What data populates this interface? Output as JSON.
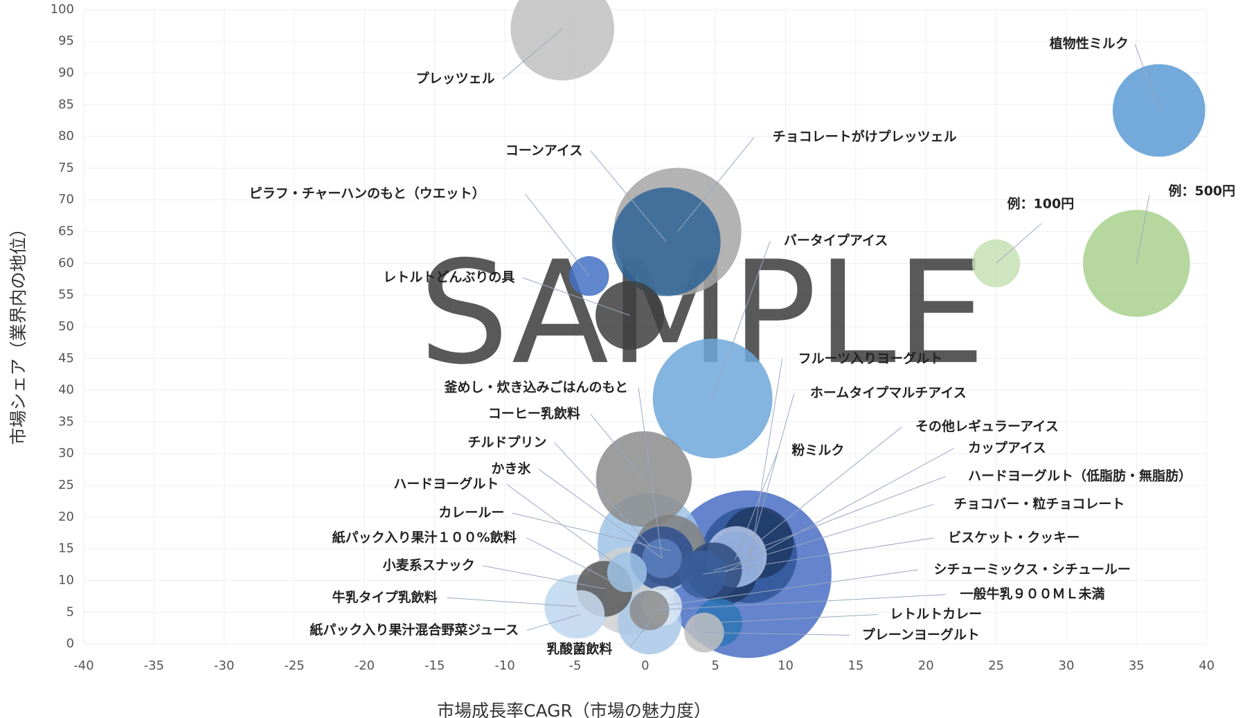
{
  "chart_data": {
    "type": "bubble",
    "x_label": "市場成長率CAGR（市場の魅力度）",
    "y_label": "市場シェア（業界内の地位）",
    "watermark": "SAMPLE",
    "xlim": [
      -40,
      40
    ],
    "xticks": [
      -40,
      -35,
      -30,
      -25,
      -20,
      -15,
      -10,
      -5,
      0,
      5,
      10,
      15,
      20,
      25,
      30,
      35,
      40
    ],
    "ylim": [
      0,
      100
    ],
    "yticks": [
      0,
      5,
      10,
      15,
      20,
      25,
      30,
      35,
      40,
      45,
      50,
      55,
      60,
      65,
      70,
      75,
      80,
      85,
      90,
      95,
      100
    ],
    "grid": true,
    "points": [
      {
        "name": "プレッツェル",
        "x": -5.9,
        "y": 97,
        "size": 469,
        "color": "#bfbfbf"
      },
      {
        "name": "植物性ミルク",
        "x": 36.6,
        "y": 84.1,
        "size": 374,
        "color": "#5b9bd5"
      },
      {
        "name": "チョコレートがけプレッツェル",
        "x": 2.3,
        "y": 65,
        "size": 711,
        "color": "#a6a6a6"
      },
      {
        "name": "コーンアイス",
        "x": 1.5,
        "y": 63.4,
        "size": 514,
        "color": "#2f6496"
      },
      {
        "name": "ピラフ・チャーハンのもと（ウエット）",
        "x": -4.0,
        "y": 58,
        "size": 69,
        "color": "#4472c4"
      },
      {
        "name": "レトルトどんぶりの具",
        "x": -1.1,
        "y": 51.8,
        "size": 205,
        "color": "#404040"
      },
      {
        "name": "バータイプアイス",
        "x": 4.8,
        "y": 38.7,
        "size": 625,
        "color": "#6fa8dc"
      },
      {
        "name": "例：100円",
        "x": 25,
        "y": 60,
        "size": 100,
        "color": "#c5e0b4"
      },
      {
        "name": "例：500円",
        "x": 35,
        "y": 60,
        "size": 500,
        "color": "#a9d18e"
      },
      {
        "name": "フルーツ入りヨーグルト",
        "x": 7.3,
        "y": 11,
        "size": 1225,
        "color": "#4a6fc4"
      },
      {
        "name": "ホームタイプマルチアイス",
        "x": 7.4,
        "y": 14,
        "size": 400,
        "color": "#2f5597"
      },
      {
        "name": "その他レギュラーアイス",
        "x": 8,
        "y": 16,
        "size": 225,
        "color": "#1f3864"
      },
      {
        "name": "カップアイス",
        "x": 5.7,
        "y": 11.3,
        "size": 178,
        "color": "#203864"
      },
      {
        "name": "粉ミルク",
        "x": 6.4,
        "y": 13.3,
        "size": 136,
        "color": "#8faadc"
      },
      {
        "name": "ハードヨーグルト（低脂肪・無脂肪）",
        "x": 6.5,
        "y": 13.8,
        "size": 160,
        "color": "#b4c7e7"
      },
      {
        "name": "チョコバー・粒チョコレート",
        "x": 4.9,
        "y": 11.6,
        "size": 136,
        "color": "#2e4a7d"
      },
      {
        "name": "ビスケット・クッキー",
        "x": 4.1,
        "y": 11,
        "size": 100,
        "color": "#3a5f9c"
      },
      {
        "name": "コーヒー乳飲料",
        "x": -0.1,
        "y": 26,
        "size": 400,
        "color": "#8c8c8c"
      },
      {
        "name": "チルドプリン",
        "x": 0.3,
        "y": 15.6,
        "size": 469,
        "color": "#9dc3e6"
      },
      {
        "name": "カレールー",
        "x": 1.8,
        "y": 14.7,
        "size": 225,
        "color": "#7f7f7f"
      },
      {
        "name": "釜めし・炊き込みごはんのもと",
        "x": 1.2,
        "y": 13.5,
        "size": 69,
        "color": "#5a7fc0"
      },
      {
        "name": "かき氷",
        "x": 1.2,
        "y": 13.5,
        "size": 178,
        "color": "#2f4f8f"
      },
      {
        "name": "紙パック入り果汁１００%飲料",
        "x": -1.1,
        "y": 8.4,
        "size": 336,
        "color": "#d0d0d0"
      },
      {
        "name": "ハードヨーグルト",
        "x": -1.3,
        "y": 11.3,
        "size": 69,
        "color": "#9dc3e6"
      },
      {
        "name": "小麦系スナック",
        "x": -2.9,
        "y": 8.7,
        "size": 136,
        "color": "#595959"
      },
      {
        "name": "牛乳タイプ乳飲料",
        "x": -4.9,
        "y": 5.9,
        "size": 178,
        "color": "#bdd7ee"
      },
      {
        "name": "紙パック入り果汁混合野菜ジュース",
        "x": -4.6,
        "y": 4.7,
        "size": 100,
        "color": "#c9daf0"
      },
      {
        "name": "乳酸菌飲料",
        "x": 0.3,
        "y": 3.4,
        "size": 178,
        "color": "#a9c8e8"
      },
      {
        "name": "シチューミックス・シチュールー",
        "x": 1.2,
        "y": 6,
        "size": 69,
        "color": "#d9e6f5"
      },
      {
        "name": "一般牛乳９００ＭＬ未満",
        "x": 0.3,
        "y": 5.3,
        "size": 69,
        "color": "#8c8c8c"
      },
      {
        "name": "レトルトカレー",
        "x": 5.2,
        "y": 3.4,
        "size": 100,
        "color": "#2e75b6"
      },
      {
        "name": "プレーンヨーグルト",
        "x": 4.2,
        "y": 1.8,
        "size": 69,
        "color": "#bfbfbf"
      }
    ]
  }
}
